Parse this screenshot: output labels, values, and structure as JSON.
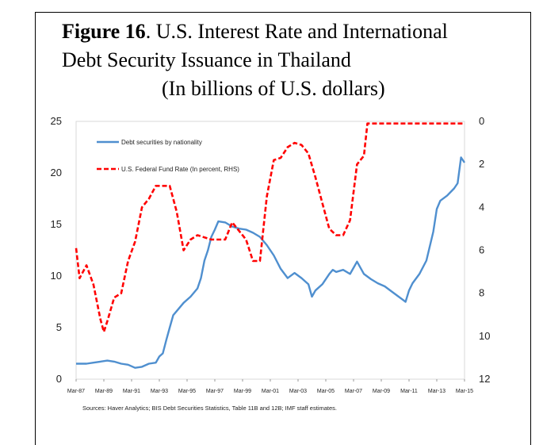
{
  "title": {
    "figure_label": "Figure 16",
    "line1_rest": ". U.S. Interest Rate and International",
    "line2": "Debt Security Issuance in Thailand",
    "line3": "(In billions of U.S. dollars)"
  },
  "source": "Sources: Haver Analytics; BIS Debt Securities Statistics, Table 11B and 12B; IMF staff estimates.",
  "chart_data": {
    "type": "line",
    "x_tick_labels": [
      "Mar-87",
      "Mar-89",
      "Mar-91",
      "Mar-93",
      "Mar-95",
      "Mar-97",
      "Mar-99",
      "Mar-01",
      "Mar-03",
      "Mar-05",
      "Mar-07",
      "Mar-09",
      "Mar-11",
      "Mar-13",
      "Mar-15"
    ],
    "x_start": 1987.25,
    "x_end": 2015.25,
    "left_axis": {
      "min": 0,
      "max": 25,
      "ticks": [
        0,
        5,
        10,
        15,
        20,
        25
      ]
    },
    "right_axis": {
      "min": 0,
      "max": 12,
      "inverted": true,
      "ticks": [
        0,
        2,
        4,
        6,
        8,
        10,
        12
      ]
    },
    "legend_position": "top-left",
    "colors": {
      "debt": "#4f8fcf",
      "fed": "#ff0000"
    },
    "series": [
      {
        "name": "Debt securities by nationality",
        "axis": "left",
        "style": "solid",
        "points": [
          [
            1987.25,
            1.5
          ],
          [
            1988.0,
            1.5
          ],
          [
            1988.5,
            1.6
          ],
          [
            1989.0,
            1.7
          ],
          [
            1989.5,
            1.8
          ],
          [
            1990.0,
            1.7
          ],
          [
            1990.5,
            1.5
          ],
          [
            1991.0,
            1.4
          ],
          [
            1991.5,
            1.1
          ],
          [
            1992.0,
            1.2
          ],
          [
            1992.5,
            1.5
          ],
          [
            1993.0,
            1.6
          ],
          [
            1993.25,
            2.2
          ],
          [
            1993.5,
            2.5
          ],
          [
            1993.75,
            3.8
          ],
          [
            1994.0,
            5.0
          ],
          [
            1994.25,
            6.2
          ],
          [
            1994.5,
            6.6
          ],
          [
            1995.0,
            7.4
          ],
          [
            1995.5,
            8.0
          ],
          [
            1996.0,
            8.8
          ],
          [
            1996.25,
            9.8
          ],
          [
            1996.5,
            11.5
          ],
          [
            1996.75,
            12.5
          ],
          [
            1997.0,
            13.8
          ],
          [
            1997.25,
            14.5
          ],
          [
            1997.5,
            15.3
          ],
          [
            1998.0,
            15.2
          ],
          [
            1998.5,
            14.8
          ],
          [
            1999.0,
            14.6
          ],
          [
            1999.5,
            14.5
          ],
          [
            2000.0,
            14.2
          ],
          [
            2000.5,
            13.8
          ],
          [
            2001.0,
            13.0
          ],
          [
            2001.5,
            12.0
          ],
          [
            2002.0,
            10.7
          ],
          [
            2002.5,
            9.8
          ],
          [
            2003.0,
            10.3
          ],
          [
            2003.5,
            9.8
          ],
          [
            2004.0,
            9.2
          ],
          [
            2004.25,
            8.0
          ],
          [
            2004.5,
            8.6
          ],
          [
            2005.0,
            9.2
          ],
          [
            2005.5,
            10.2
          ],
          [
            2005.75,
            10.6
          ],
          [
            2006.0,
            10.4
          ],
          [
            2006.5,
            10.6
          ],
          [
            2007.0,
            10.2
          ],
          [
            2007.25,
            10.8
          ],
          [
            2007.5,
            11.4
          ],
          [
            2008.0,
            10.2
          ],
          [
            2008.5,
            9.7
          ],
          [
            2009.0,
            9.3
          ],
          [
            2009.5,
            9.0
          ],
          [
            2010.0,
            8.5
          ],
          [
            2010.5,
            8.0
          ],
          [
            2011.0,
            7.5
          ],
          [
            2011.25,
            8.6
          ],
          [
            2011.5,
            9.3
          ],
          [
            2012.0,
            10.2
          ],
          [
            2012.5,
            11.5
          ],
          [
            2013.0,
            14.3
          ],
          [
            2013.25,
            16.5
          ],
          [
            2013.5,
            17.3
          ],
          [
            2014.0,
            17.8
          ],
          [
            2014.5,
            18.5
          ],
          [
            2014.75,
            19.0
          ],
          [
            2015.0,
            21.5
          ],
          [
            2015.25,
            21.0
          ]
        ]
      },
      {
        "name": "U.S. Federal Fund Rate (In percent, RHS)",
        "axis": "right",
        "style": "dashed",
        "points": [
          [
            1987.25,
            5.9
          ],
          [
            1987.5,
            7.3
          ],
          [
            1988.0,
            6.7
          ],
          [
            1988.5,
            7.6
          ],
          [
            1989.0,
            9.2
          ],
          [
            1989.25,
            9.8
          ],
          [
            1989.5,
            9.3
          ],
          [
            1990.0,
            8.2
          ],
          [
            1990.5,
            8.0
          ],
          [
            1991.0,
            6.5
          ],
          [
            1991.5,
            5.6
          ],
          [
            1992.0,
            4.0
          ],
          [
            1992.5,
            3.6
          ],
          [
            1993.0,
            3.0
          ],
          [
            1994.0,
            3.0
          ],
          [
            1994.5,
            4.2
          ],
          [
            1995.0,
            6.0
          ],
          [
            1995.5,
            5.5
          ],
          [
            1996.0,
            5.3
          ],
          [
            1997.0,
            5.5
          ],
          [
            1998.0,
            5.5
          ],
          [
            1998.5,
            4.7
          ],
          [
            1999.0,
            5.1
          ],
          [
            1999.5,
            5.5
          ],
          [
            2000.0,
            6.5
          ],
          [
            2000.5,
            6.5
          ],
          [
            2001.0,
            3.5
          ],
          [
            2001.5,
            1.8
          ],
          [
            2002.0,
            1.7
          ],
          [
            2002.5,
            1.2
          ],
          [
            2003.0,
            1.0
          ],
          [
            2003.5,
            1.1
          ],
          [
            2004.0,
            1.5
          ],
          [
            2004.5,
            2.6
          ],
          [
            2005.0,
            3.8
          ],
          [
            2005.5,
            5.0
          ],
          [
            2006.0,
            5.3
          ],
          [
            2006.5,
            5.3
          ],
          [
            2007.0,
            4.6
          ],
          [
            2007.5,
            2.0
          ],
          [
            2008.0,
            1.6
          ],
          [
            2008.25,
            0.1
          ],
          [
            2009.0,
            0.1
          ],
          [
            2010.0,
            0.1
          ],
          [
            2011.0,
            0.1
          ],
          [
            2012.0,
            0.1
          ],
          [
            2013.0,
            0.1
          ],
          [
            2014.0,
            0.1
          ],
          [
            2015.25,
            0.1
          ]
        ]
      }
    ]
  }
}
